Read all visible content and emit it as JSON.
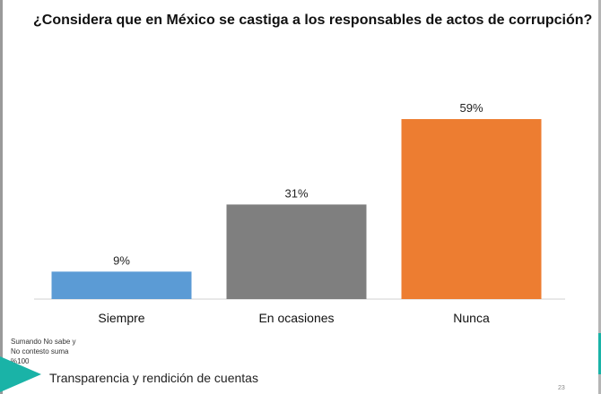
{
  "title": "¿Considera que en México se castiga a los responsables de actos de corrupción?",
  "note": {
    "lines": [
      "Sumando No sabe y",
      "No contesto suma",
      "%100"
    ]
  },
  "footer": {
    "text": "Transparencia y rendición de cuentas"
  },
  "page_number": "23",
  "colors": {
    "siempre": "#5b9bd5",
    "en_ocasiones": "#7f7f7f",
    "nunca": "#ed7d31",
    "accent": "#1ab3a7"
  },
  "chart_data": {
    "type": "bar",
    "title": "¿Considera que en México se castiga a los responsables de actos de corrupción?",
    "categories": [
      "Siempre",
      "En ocasiones",
      "Nunca"
    ],
    "values": [
      9,
      31,
      59
    ],
    "value_labels": [
      "9%",
      "31%",
      "59%"
    ],
    "bar_colors": [
      "#5b9bd5",
      "#7f7f7f",
      "#ed7d31"
    ],
    "xlabel": "",
    "ylabel": "",
    "ylim": [
      0,
      59
    ],
    "grid": false,
    "legend": "none"
  }
}
